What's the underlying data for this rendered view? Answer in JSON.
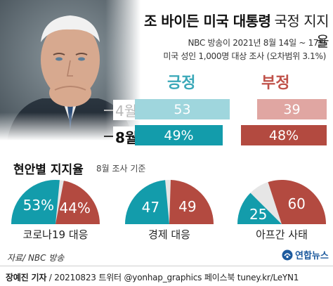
{
  "title": {
    "main": "조 바이든 미국 대통령",
    "sub": "국정 지지율"
  },
  "subtitle_lines": [
    "NBC 방송이 2021년 8월 14일 ~ 17일",
    "미국 성인 1,000명 대상 조사 (오차범위 3.1%)"
  ],
  "chart_data": [
    {
      "type": "bar",
      "orientation": "horizontal",
      "stacked": true,
      "categories": [
        "4월",
        "8월"
      ],
      "series": [
        {
          "name": "긍정",
          "values": [
            53,
            49
          ],
          "labels": [
            "53",
            "49%"
          ],
          "color_apr": "#9fd6dd",
          "color_aug": "#139cab"
        },
        {
          "name": "부정",
          "values": [
            39,
            48
          ],
          "labels": [
            "39",
            "48%"
          ],
          "color_apr": "#e0a6a2",
          "color_aug": "#b34a40"
        }
      ],
      "unit": "%",
      "legend": "column-headers-top"
    },
    {
      "type": "pie",
      "subtype": "half-donut",
      "title": "현안별 지지율",
      "note": "8월 조사 기준",
      "charts": [
        {
          "label": "코로나19 대응",
          "positive": 53,
          "negative": 44,
          "positive_text": "53%",
          "negative_text": "44%"
        },
        {
          "label": "경제 대응",
          "positive": 47,
          "negative": 49,
          "positive_text": "47",
          "negative_text": "49"
        },
        {
          "label": "아프간 사태",
          "positive": 25,
          "negative": 60,
          "positive_text": "25",
          "negative_text": "60"
        }
      ],
      "colors": {
        "positive": "#139cab",
        "negative": "#b34a40"
      }
    }
  ],
  "source": "자료/ NBC 방송",
  "logo": {
    "text": "연합뉴스"
  },
  "credit": {
    "reporter": "장예진 기자",
    "rest": " / 20210823 트위터 @yonhap_graphics  페이스북 tuney.kr/LeYN1"
  }
}
